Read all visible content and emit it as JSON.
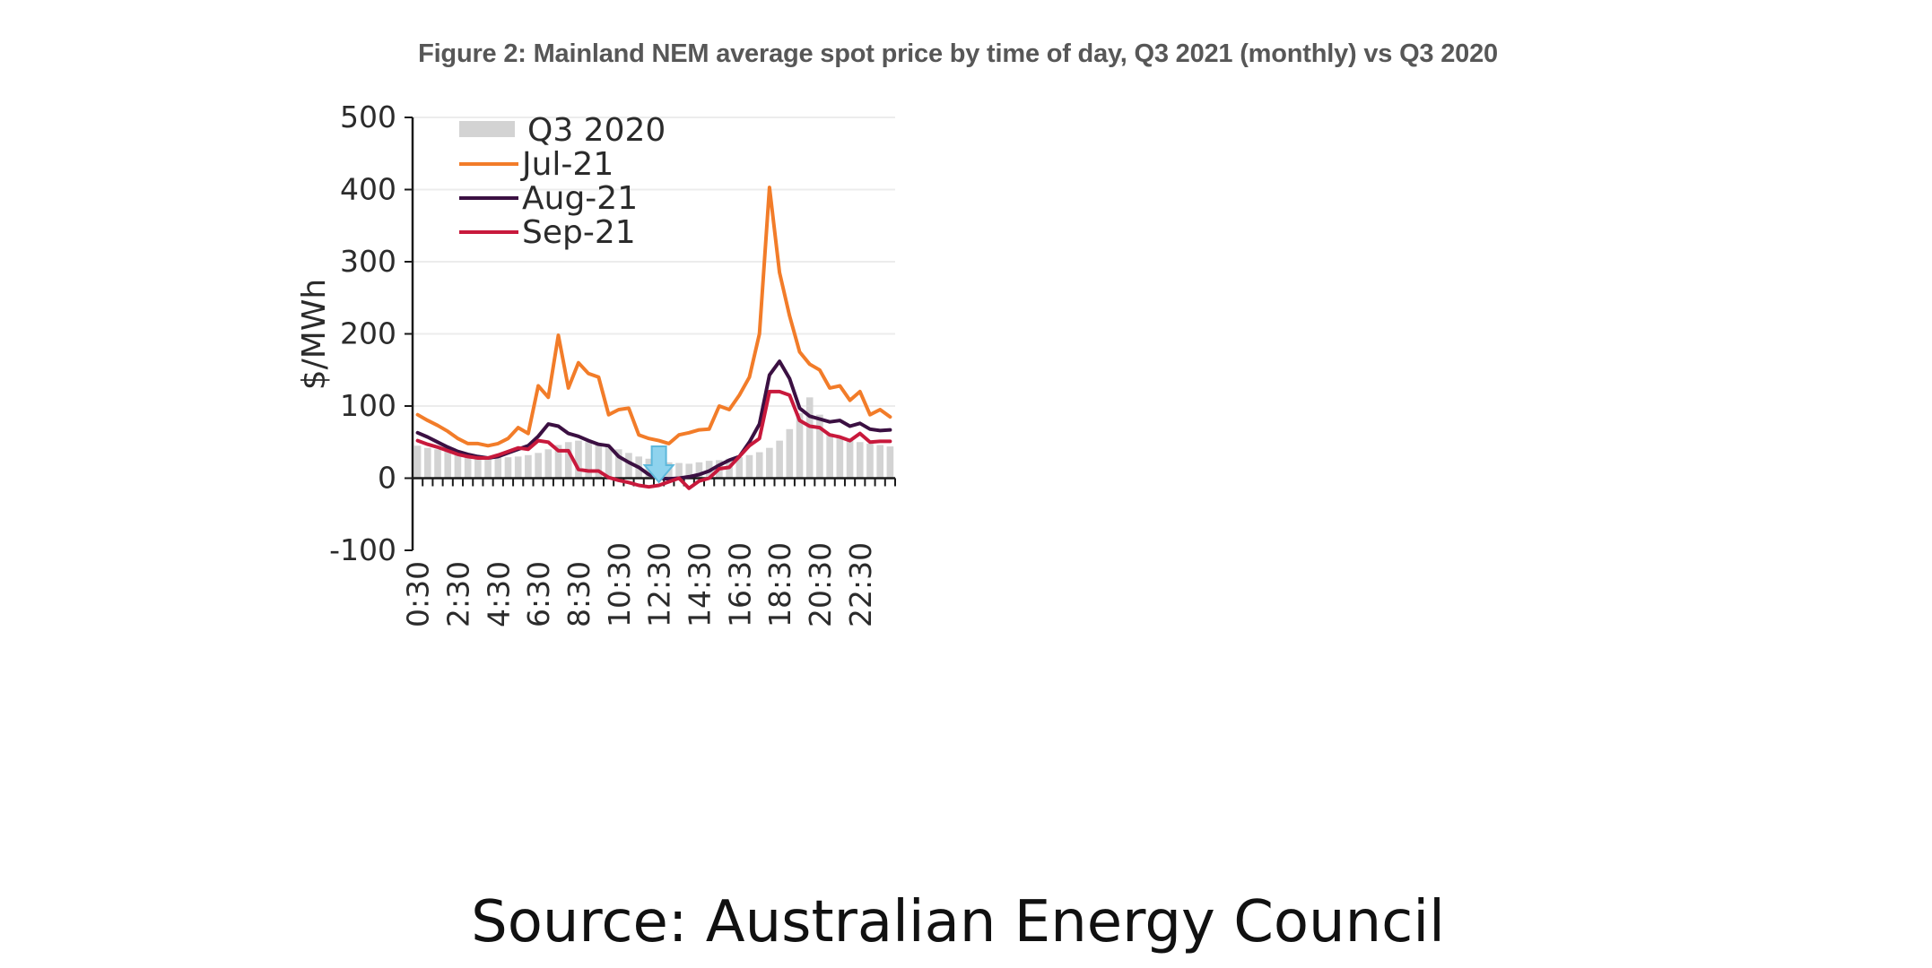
{
  "header": {
    "title": "Figure 2: Mainland NEM average spot price by time of day, Q3 2021 (monthly) vs Q3 2020"
  },
  "footer": {
    "source": "Source: Australian Energy Council"
  },
  "chart_data": {
    "type": "line",
    "title": "Figure 2: Mainland NEM average spot price by time of day, Q3 2021 (monthly) vs Q3 2020",
    "xlabel": "",
    "ylabel": "$/MWh",
    "ylim": [
      -100,
      500
    ],
    "yticks": [
      -100,
      0,
      100,
      200,
      300,
      400,
      500
    ],
    "xtick_labels": [
      "0:30",
      "2:30",
      "4:30",
      "6:30",
      "8:30",
      "10:30",
      "12:30",
      "14:30",
      "16:30",
      "18:30",
      "20:30",
      "22:30"
    ],
    "x_points": 48,
    "grid": "horizontal",
    "legend": "top-left",
    "annotations": [
      {
        "type": "down-arrow",
        "at": "12:30",
        "color": "#8ed3ee"
      }
    ],
    "bars": {
      "name": "Q3 2020",
      "color": "#d3d3d3",
      "values": [
        45,
        42,
        40,
        38,
        36,
        33,
        31,
        30,
        29,
        29,
        30,
        32,
        35,
        40,
        46,
        50,
        52,
        50,
        47,
        44,
        40,
        35,
        30,
        27,
        24,
        22,
        21,
        20,
        22,
        24,
        25,
        27,
        29,
        32,
        36,
        42,
        52,
        68,
        90,
        112,
        88,
        62,
        56,
        52,
        50,
        48,
        46,
        44
      ]
    },
    "series": [
      {
        "name": "Jul-21",
        "color": "#f27c29",
        "values": [
          88,
          80,
          73,
          65,
          55,
          48,
          48,
          45,
          48,
          55,
          70,
          62,
          128,
          112,
          198,
          125,
          160,
          145,
          140,
          88,
          95,
          97,
          60,
          55,
          52,
          48,
          60,
          63,
          67,
          68,
          100,
          95,
          115,
          140,
          200,
          403,
          285,
          225,
          175,
          158,
          150,
          125,
          128,
          108,
          120,
          88,
          95,
          85
        ]
      },
      {
        "name": "Aug-21",
        "color": "#3b1042",
        "values": [
          63,
          57,
          50,
          43,
          37,
          33,
          30,
          28,
          30,
          35,
          40,
          45,
          58,
          75,
          72,
          62,
          58,
          52,
          47,
          45,
          30,
          22,
          15,
          5,
          0,
          -1,
          0,
          2,
          5,
          10,
          18,
          25,
          30,
          50,
          75,
          143,
          162,
          138,
          97,
          86,
          82,
          78,
          80,
          72,
          76,
          68,
          66,
          67
        ]
      },
      {
        "name": "Sep-21",
        "color": "#c8193c",
        "values": [
          52,
          47,
          43,
          38,
          33,
          30,
          28,
          28,
          32,
          37,
          42,
          40,
          52,
          50,
          38,
          38,
          12,
          10,
          10,
          1,
          -3,
          -6,
          -10,
          -12,
          -10,
          -5,
          0,
          -14,
          -4,
          0,
          13,
          15,
          30,
          45,
          55,
          120,
          120,
          115,
          80,
          72,
          70,
          60,
          57,
          52,
          62,
          50,
          51,
          51
        ]
      }
    ]
  }
}
